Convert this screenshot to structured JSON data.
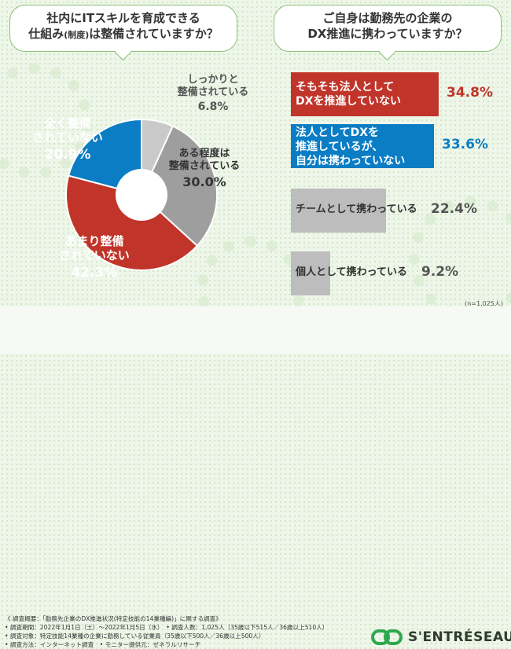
{
  "q1": {
    "line1": "社内にITスキルを育成できる",
    "line2_a": "仕組み",
    "line2_small": "(制度)",
    "line2_b": "は整備されていますか？"
  },
  "q2": {
    "line1": "ご自身は勤務先の企業の",
    "line2": "DX推進に携わっていますか？"
  },
  "chart_data": [
    {
      "type": "pie",
      "title": "社内にITスキルを育成できる仕組み(制度)は整備されていますか？",
      "slices": [
        {
          "label_lines": [
            "しっかりと",
            "整備されている"
          ],
          "pct_text": "6.8%",
          "value": 6.8,
          "color": "#c9c9c9"
        },
        {
          "label_lines": [
            "ある程度は",
            "整備されている"
          ],
          "pct_text": "30.0%",
          "value": 30.0,
          "color": "#9e9e9e"
        },
        {
          "label_lines": [
            "あまり整備",
            "されていない"
          ],
          "pct_text": "42.3%",
          "value": 42.3,
          "color": "#c0342a"
        },
        {
          "label_lines": [
            "全く整備",
            "されていない"
          ],
          "pct_text": "20.9%",
          "value": 20.9,
          "color": "#0b7dc4"
        }
      ]
    },
    {
      "type": "bar",
      "title": "ご自身は勤務先の企業のDX推進に携わっていますか？",
      "bars": [
        {
          "label_lines": [
            "そもそも法人として",
            "DXを推進していない"
          ],
          "pct_text": "34.8%",
          "value": 34.8,
          "color": "#c0342a"
        },
        {
          "label_lines": [
            "法人としてDXを",
            "推進しているが、",
            "自分は携わっていない"
          ],
          "pct_text": "33.6%",
          "value": 33.6,
          "color": "#0b7dc4"
        },
        {
          "label_lines": [
            "チームとして携わっている"
          ],
          "pct_text": "22.4%",
          "value": 22.4,
          "color": "#bdbdbd"
        },
        {
          "label_lines": [
            "個人として携わっている"
          ],
          "pct_text": "9.2%",
          "value": 9.2,
          "color": "#bdbdbd"
        }
      ]
    }
  ],
  "n_label": "(n=1,025人)",
  "notes": [
    "《 調査概要：「勤務先企業のDX推進状況(特定技能の14業種編)」に関する調査》",
    "• 調査期間：2022年1月1日（土）～2022年1月5日（水）　• 調査人数：1,025人（35歳以下515人／36歳以上510人）",
    "• 調査対象：特定技能14業種の企業に勤務している従業員（35歳以下500人／36歳以上500人）",
    "• 調査方法：インターネット調査　• モニター提供元：ゼネラルリサーチ"
  ],
  "logo": {
    "text": "S'ENTRÉSEAU",
    "icon": "link-icon",
    "color": "#2fa84f"
  }
}
